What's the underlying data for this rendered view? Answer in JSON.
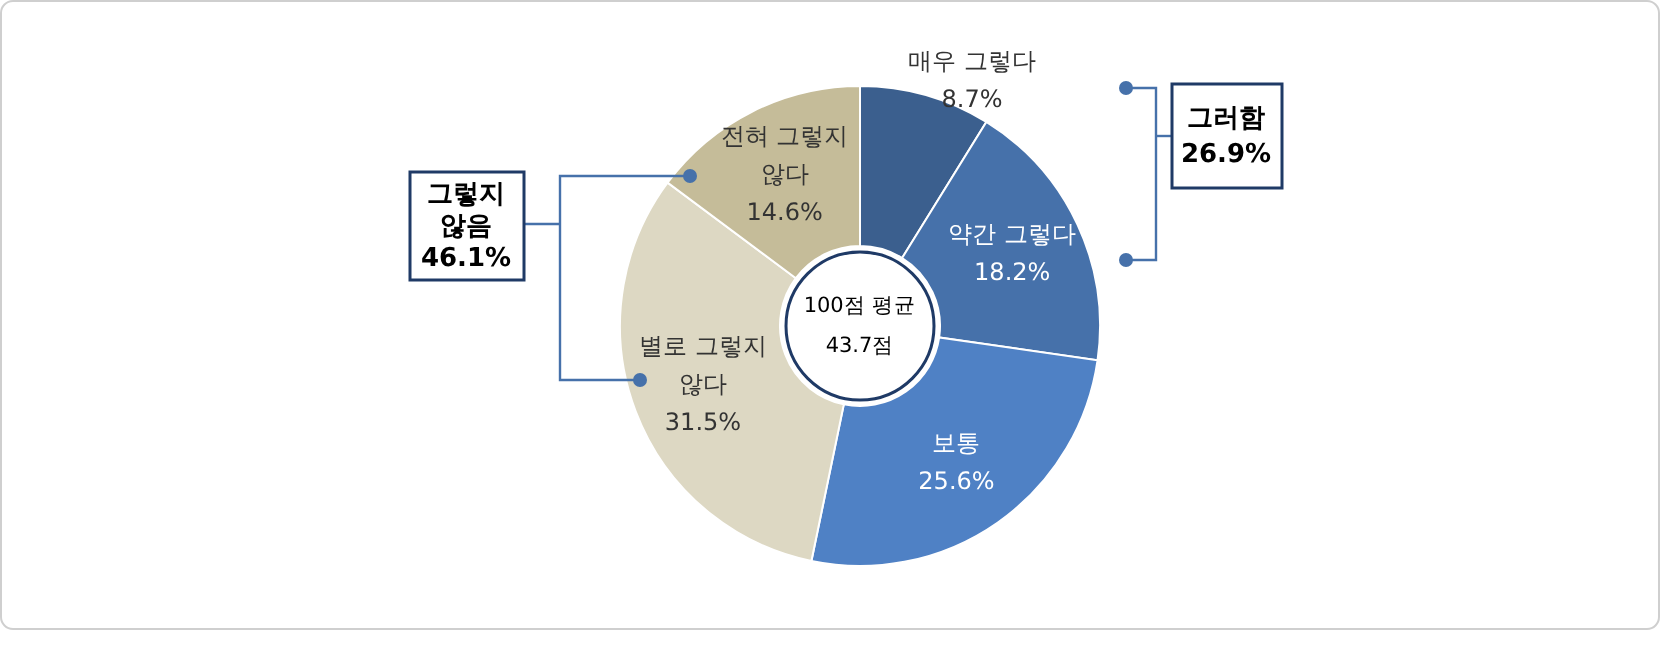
{
  "chart_data": {
    "type": "donut",
    "categories": [
      "매우 그렇다",
      "약간 그렇다",
      "보통",
      "별로 그렇지\n않다",
      "전혀 그렇지\n않다"
    ],
    "values": [
      8.7,
      18.2,
      25.6,
      31.5,
      14.6
    ],
    "value_labels": [
      "8.7%",
      "18.2%",
      "25.6%",
      "31.5%",
      "14.6%"
    ],
    "colors": [
      "#3b5f8e",
      "#4671aa",
      "#4f81c5",
      "#ddd8c3",
      "#c5bc99"
    ],
    "annotations": [
      "100점 평균\n43.7점",
      "그러함\n26.9%",
      "그렇지\n않음\n46.1%"
    ]
  }
}
